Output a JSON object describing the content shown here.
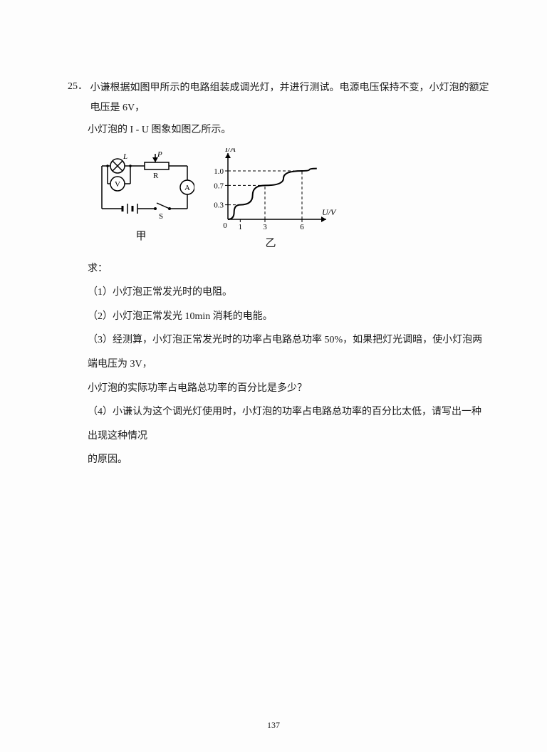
{
  "question": {
    "number": "25．",
    "stem1": "小谦根据如图甲所示的电路组装成调光灯，并进行测试。电源电压保持不变，小灯泡的额定电压是 6V，",
    "stem2": "小灯泡的 I - U 图象如图乙所示。",
    "qiu": "求：",
    "q1": "（1）小灯泡正常发光时的电阻。",
    "q2": "（2）小灯泡正常发光 10min 消耗的电能。",
    "q3": "（3）经测算，小灯泡正常发光时的功率占电路总功率 50%，如果把灯光调暗，使小灯泡两端电压为 3V，",
    "q3b": "小灯泡的实际功率占电路总功率的百分比是多少？",
    "q4": "（4）小谦认为这个调光灯使用时，小灯泡的功率占电路总功率的百分比太低，请写出一种出现这种情况",
    "q4b": "的原因。"
  },
  "circuit": {
    "labels": {
      "L": "L",
      "P": "P",
      "R": "R",
      "S": "S",
      "V": "V",
      "A": "A"
    },
    "caption": "甲",
    "stroke": "#000000",
    "fill": "#ffffff"
  },
  "chart": {
    "type": "line",
    "caption": "乙",
    "x_label": "U/V",
    "y_label": "I/A",
    "x_ticks": [
      0,
      1,
      3,
      6
    ],
    "y_ticks": [
      0.3,
      0.7,
      1.0
    ],
    "xlim": [
      0,
      7.5
    ],
    "ylim": [
      0,
      1.25
    ],
    "points": [
      {
        "u": 0,
        "i": 0
      },
      {
        "u": 1,
        "i": 0.3
      },
      {
        "u": 3,
        "i": 0.7
      },
      {
        "u": 6,
        "i": 1.0
      }
    ],
    "dash_vx": [
      3,
      6
    ],
    "dash_hy": [
      0.3,
      0.7,
      1.0
    ],
    "stroke": "#000000",
    "axis_color": "#000000",
    "label_fontsize": 12,
    "tick_fontsize": 11,
    "background": "#ffffff"
  },
  "pagenum": "137"
}
